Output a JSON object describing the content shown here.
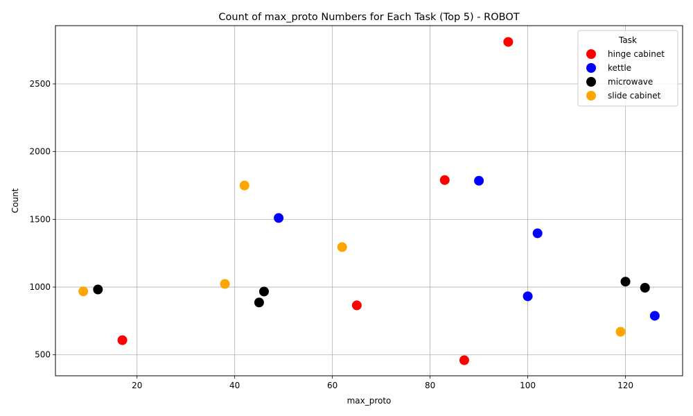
{
  "chart_data": {
    "type": "scatter",
    "title": "Count of max_proto Numbers for Each Task (Top 5) - ROBOT",
    "xlabel": "max_proto",
    "ylabel": "Count",
    "xlim": [
      3.3,
      131.7
    ],
    "ylim": [
      345,
      2930
    ],
    "xticks": [
      20,
      40,
      60,
      80,
      100,
      120
    ],
    "yticks": [
      500,
      1000,
      1500,
      2000,
      2500
    ],
    "grid": true,
    "legend": {
      "title": "Task",
      "placement": "top-right"
    },
    "series": [
      {
        "name": "hinge cabinet",
        "color": "#ff0000",
        "points": [
          [
            96,
            2810
          ],
          [
            83,
            1790
          ],
          [
            65,
            865
          ],
          [
            17,
            608
          ],
          [
            87,
            460
          ]
        ]
      },
      {
        "name": "kettle",
        "color": "#0000ff",
        "points": [
          [
            90,
            1785
          ],
          [
            49,
            1510
          ],
          [
            102,
            1397
          ],
          [
            100,
            932
          ],
          [
            126,
            788
          ]
        ]
      },
      {
        "name": "microwave",
        "color": "#000000",
        "points": [
          [
            120,
            1040
          ],
          [
            124,
            995
          ],
          [
            12,
            982
          ],
          [
            46,
            967
          ],
          [
            45,
            886
          ]
        ]
      },
      {
        "name": "slide cabinet",
        "color": "#ffa500",
        "points": [
          [
            42,
            1750
          ],
          [
            62,
            1295
          ],
          [
            38,
            1023
          ],
          [
            9,
            968
          ],
          [
            119,
            670
          ]
        ]
      }
    ]
  }
}
